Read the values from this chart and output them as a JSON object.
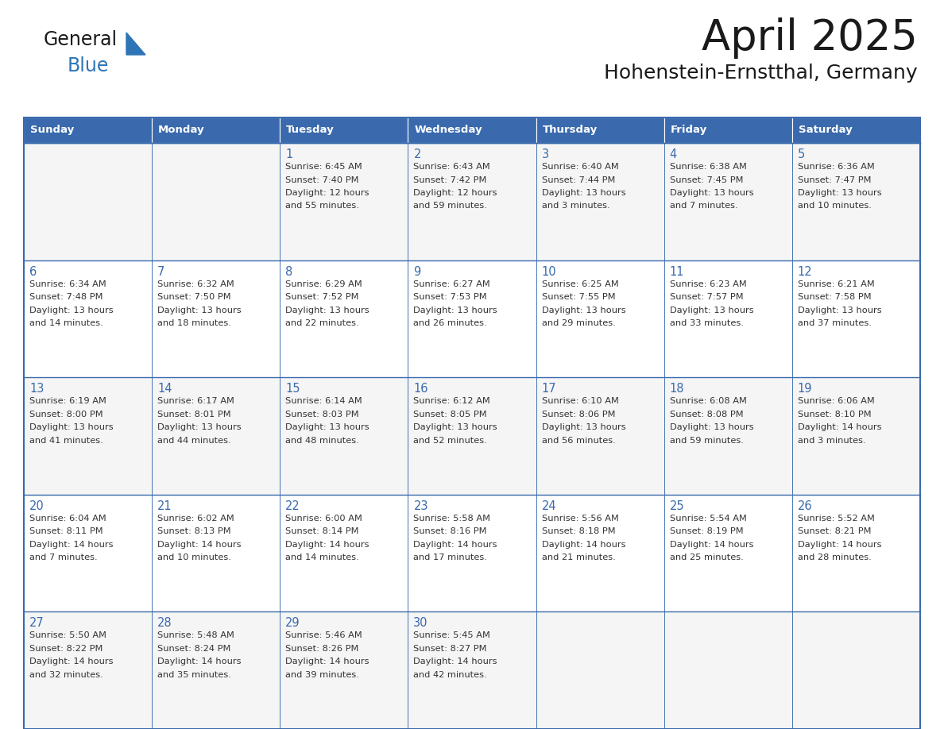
{
  "title": "April 2025",
  "subtitle": "Hohenstein-Ernstthal, Germany",
  "days_of_week": [
    "Sunday",
    "Monday",
    "Tuesday",
    "Wednesday",
    "Thursday",
    "Friday",
    "Saturday"
  ],
  "header_bg_color": "#3A6AAD",
  "header_text_color": "#FFFFFF",
  "cell_bg_even": "#F5F5F5",
  "cell_bg_odd": "#FFFFFF",
  "border_color": "#3A6AAD",
  "day_num_color": "#3A6AAD",
  "text_color": "#333333",
  "title_color": "#1A1A1A",
  "subtitle_color": "#1A1A1A",
  "logo_general_color": "#1A1A1A",
  "logo_blue_color": "#2E75B6",
  "logo_triangle_color": "#2E75B6",
  "calendar": [
    [
      {
        "day": null,
        "data": ""
      },
      {
        "day": null,
        "data": ""
      },
      {
        "day": 1,
        "data": "Sunrise: 6:45 AM\nSunset: 7:40 PM\nDaylight: 12 hours\nand 55 minutes."
      },
      {
        "day": 2,
        "data": "Sunrise: 6:43 AM\nSunset: 7:42 PM\nDaylight: 12 hours\nand 59 minutes."
      },
      {
        "day": 3,
        "data": "Sunrise: 6:40 AM\nSunset: 7:44 PM\nDaylight: 13 hours\nand 3 minutes."
      },
      {
        "day": 4,
        "data": "Sunrise: 6:38 AM\nSunset: 7:45 PM\nDaylight: 13 hours\nand 7 minutes."
      },
      {
        "day": 5,
        "data": "Sunrise: 6:36 AM\nSunset: 7:47 PM\nDaylight: 13 hours\nand 10 minutes."
      }
    ],
    [
      {
        "day": 6,
        "data": "Sunrise: 6:34 AM\nSunset: 7:48 PM\nDaylight: 13 hours\nand 14 minutes."
      },
      {
        "day": 7,
        "data": "Sunrise: 6:32 AM\nSunset: 7:50 PM\nDaylight: 13 hours\nand 18 minutes."
      },
      {
        "day": 8,
        "data": "Sunrise: 6:29 AM\nSunset: 7:52 PM\nDaylight: 13 hours\nand 22 minutes."
      },
      {
        "day": 9,
        "data": "Sunrise: 6:27 AM\nSunset: 7:53 PM\nDaylight: 13 hours\nand 26 minutes."
      },
      {
        "day": 10,
        "data": "Sunrise: 6:25 AM\nSunset: 7:55 PM\nDaylight: 13 hours\nand 29 minutes."
      },
      {
        "day": 11,
        "data": "Sunrise: 6:23 AM\nSunset: 7:57 PM\nDaylight: 13 hours\nand 33 minutes."
      },
      {
        "day": 12,
        "data": "Sunrise: 6:21 AM\nSunset: 7:58 PM\nDaylight: 13 hours\nand 37 minutes."
      }
    ],
    [
      {
        "day": 13,
        "data": "Sunrise: 6:19 AM\nSunset: 8:00 PM\nDaylight: 13 hours\nand 41 minutes."
      },
      {
        "day": 14,
        "data": "Sunrise: 6:17 AM\nSunset: 8:01 PM\nDaylight: 13 hours\nand 44 minutes."
      },
      {
        "day": 15,
        "data": "Sunrise: 6:14 AM\nSunset: 8:03 PM\nDaylight: 13 hours\nand 48 minutes."
      },
      {
        "day": 16,
        "data": "Sunrise: 6:12 AM\nSunset: 8:05 PM\nDaylight: 13 hours\nand 52 minutes."
      },
      {
        "day": 17,
        "data": "Sunrise: 6:10 AM\nSunset: 8:06 PM\nDaylight: 13 hours\nand 56 minutes."
      },
      {
        "day": 18,
        "data": "Sunrise: 6:08 AM\nSunset: 8:08 PM\nDaylight: 13 hours\nand 59 minutes."
      },
      {
        "day": 19,
        "data": "Sunrise: 6:06 AM\nSunset: 8:10 PM\nDaylight: 14 hours\nand 3 minutes."
      }
    ],
    [
      {
        "day": 20,
        "data": "Sunrise: 6:04 AM\nSunset: 8:11 PM\nDaylight: 14 hours\nand 7 minutes."
      },
      {
        "day": 21,
        "data": "Sunrise: 6:02 AM\nSunset: 8:13 PM\nDaylight: 14 hours\nand 10 minutes."
      },
      {
        "day": 22,
        "data": "Sunrise: 6:00 AM\nSunset: 8:14 PM\nDaylight: 14 hours\nand 14 minutes."
      },
      {
        "day": 23,
        "data": "Sunrise: 5:58 AM\nSunset: 8:16 PM\nDaylight: 14 hours\nand 17 minutes."
      },
      {
        "day": 24,
        "data": "Sunrise: 5:56 AM\nSunset: 8:18 PM\nDaylight: 14 hours\nand 21 minutes."
      },
      {
        "day": 25,
        "data": "Sunrise: 5:54 AM\nSunset: 8:19 PM\nDaylight: 14 hours\nand 25 minutes."
      },
      {
        "day": 26,
        "data": "Sunrise: 5:52 AM\nSunset: 8:21 PM\nDaylight: 14 hours\nand 28 minutes."
      }
    ],
    [
      {
        "day": 27,
        "data": "Sunrise: 5:50 AM\nSunset: 8:22 PM\nDaylight: 14 hours\nand 32 minutes."
      },
      {
        "day": 28,
        "data": "Sunrise: 5:48 AM\nSunset: 8:24 PM\nDaylight: 14 hours\nand 35 minutes."
      },
      {
        "day": 29,
        "data": "Sunrise: 5:46 AM\nSunset: 8:26 PM\nDaylight: 14 hours\nand 39 minutes."
      },
      {
        "day": 30,
        "data": "Sunrise: 5:45 AM\nSunset: 8:27 PM\nDaylight: 14 hours\nand 42 minutes."
      },
      {
        "day": null,
        "data": ""
      },
      {
        "day": null,
        "data": ""
      },
      {
        "day": null,
        "data": ""
      }
    ]
  ]
}
